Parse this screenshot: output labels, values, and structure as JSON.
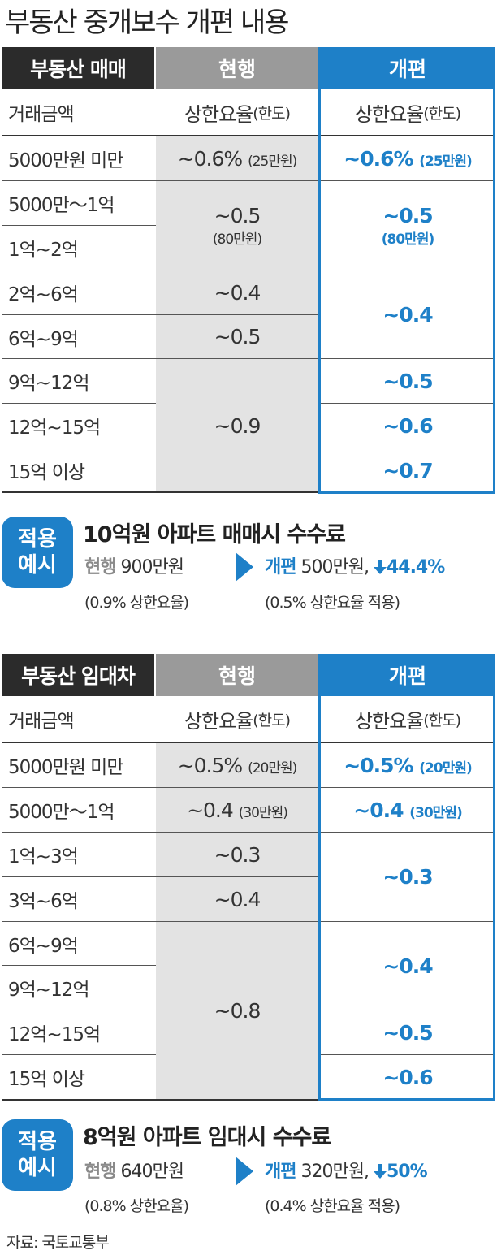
{
  "title": "부동산 중개보수 개편 내용",
  "sale": {
    "header": {
      "kind": "부동산 매매",
      "current": "현행",
      "new": "개편"
    },
    "subheader": {
      "amount": "거래금액",
      "current_main": "상한요율",
      "current_paren": "(한도)",
      "new_main": "상한요율",
      "new_paren": "(한도)"
    },
    "rows": [
      "5000만원 미만",
      "5000만～1억",
      "1억~2억",
      "2억~6억",
      "6억~9억",
      "9억~12억",
      "12억~15억",
      "15억 이상"
    ],
    "current": [
      {
        "main": "~0.6%",
        "sub": "(25만원)"
      },
      {
        "main": "~0.5",
        "sub": "(80만원)"
      },
      {
        "main": "~0.4",
        "sub": ""
      },
      {
        "main": "~0.5",
        "sub": ""
      },
      {
        "main": "~0.9",
        "sub": ""
      }
    ],
    "new": [
      {
        "main": "~0.6%",
        "sub": "(25만원)"
      },
      {
        "main": "~0.5",
        "sub": "(80만원)"
      },
      {
        "main": "~0.4",
        "sub": ""
      },
      {
        "main": "~0.5",
        "sub": ""
      },
      {
        "main": "~0.6",
        "sub": ""
      },
      {
        "main": "~0.7",
        "sub": ""
      }
    ]
  },
  "sale_example": {
    "badge_line1": "적용",
    "badge_line2": "예시",
    "title": "10억원 아파트 매매시 수수료",
    "current_label": "현행",
    "current_value": "900만원",
    "current_note": "(0.9% 상한요율)",
    "new_label": "개편",
    "new_value": "500만원,",
    "change": "44.4%",
    "new_note": "(0.5% 상한요율 적용)"
  },
  "rent": {
    "header": {
      "kind": "부동산 임대차",
      "current": "현행",
      "new": "개편"
    },
    "subheader": {
      "amount": "거래금액",
      "current_main": "상한요율",
      "current_paren": "(한도)",
      "new_main": "상한요율",
      "new_paren": "(한도)"
    },
    "rows": [
      "5000만원 미만",
      "5000만～1억",
      "1억~3억",
      "3억~6억",
      "6억~9억",
      "9억~12억",
      "12억~15억",
      "15억 이상"
    ],
    "current": [
      {
        "main": "~0.5%",
        "sub": "(20만원)"
      },
      {
        "main": "~0.4",
        "sub": "(30만원)"
      },
      {
        "main": "~0.3",
        "sub": ""
      },
      {
        "main": "~0.4",
        "sub": ""
      },
      {
        "main": "~0.8",
        "sub": ""
      }
    ],
    "new": [
      {
        "main": "~0.5%",
        "sub": "(20만원)"
      },
      {
        "main": "~0.4",
        "sub": "(30만원)"
      },
      {
        "main": "~0.3",
        "sub": ""
      },
      {
        "main": "~0.4",
        "sub": ""
      },
      {
        "main": "~0.5",
        "sub": ""
      },
      {
        "main": "~0.6",
        "sub": ""
      }
    ]
  },
  "rent_example": {
    "badge_line1": "적용",
    "badge_line2": "예시",
    "title": "8억원 아파트 임대시 수수료",
    "current_label": "현행",
    "current_value": "640만원",
    "current_note": "(0.8% 상한요율)",
    "new_label": "개편",
    "new_value": "320만원,",
    "change": "50%",
    "new_note": "(0.4% 상한요율 적용)"
  },
  "source": "자료: 국토교통부",
  "colors": {
    "accent": "#1e80c8",
    "dark": "#2b2b2b",
    "gray_header": "#9a9a9a",
    "gray_cell": "#e3e3e3"
  }
}
